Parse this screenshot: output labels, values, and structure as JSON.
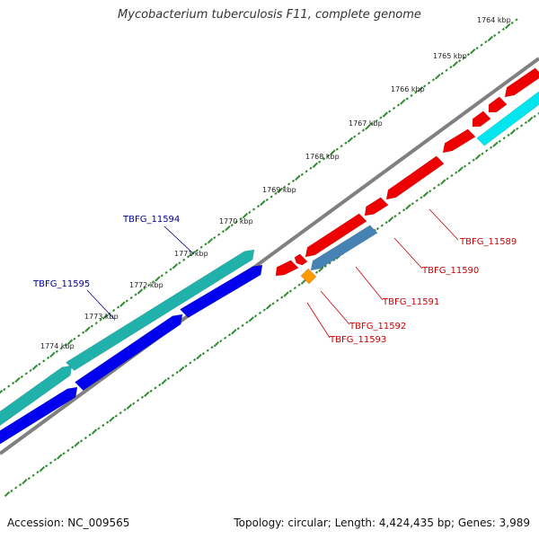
{
  "title": "Mycobacterium tuberculosis F11, complete genome",
  "footer": {
    "accession": "Accession: NC_009565",
    "stats": "Topology: circular; Length: 4,424,435 bp; Genes: 3,989"
  },
  "colors": {
    "backbone": "#808080",
    "ticks": "#2e8b2e",
    "forward_label": "#00008b",
    "reverse_label": "#cc0000",
    "feature_cyan_bright": "#00e5ee",
    "feature_teal": "#20b2aa",
    "feature_blue": "#0000ee",
    "feature_red": "#ee0000",
    "feature_steelblue": "#4682b4",
    "feature_orange": "#ff9900"
  },
  "ruler": {
    "tick_labels": [
      "1764 kbp",
      "1765 kbp",
      "1766 kbp",
      "1767 kbp",
      "1768 kbp",
      "1769 kbp",
      "1770 kbp",
      "1771 kbp",
      "1772 kbp",
      "1773 kbp",
      "1774 kbp"
    ]
  },
  "gene_labels": {
    "forward": [
      "TBFG_11594",
      "TBFG_11595"
    ],
    "reverse": [
      "TBFG_11589",
      "TBFG_11590",
      "TBFG_11591",
      "TBFG_11592",
      "TBFG_11593"
    ]
  }
}
